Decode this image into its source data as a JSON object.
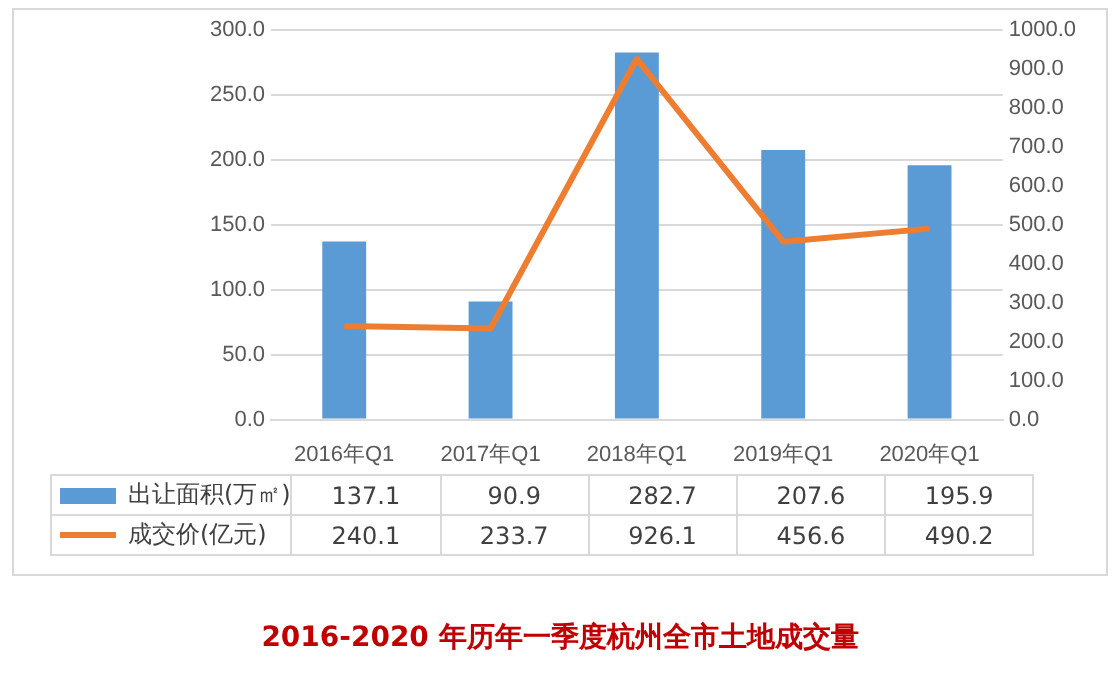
{
  "chart_data": {
    "type": "bar",
    "title": "2016-2020 年历年一季度杭州全市土地成交量",
    "categories": [
      "2016年Q1",
      "2017年Q1",
      "2018年Q1",
      "2019年Q1",
      "2020年Q1"
    ],
    "series": [
      {
        "name": "出让面积(万㎡)",
        "color": "#5b9bd5",
        "values": [
          137.1,
          90.9,
          282.7,
          207.6,
          195.9
        ]
      },
      {
        "name": "成交价(亿元)",
        "type": "line",
        "axis": "y2",
        "color": "#ed7d31",
        "values": [
          240.1,
          233.7,
          926.1,
          456.6,
          490.2
        ]
      }
    ],
    "ylim": [
      0,
      300
    ],
    "yticks": [
      {
        "value": 0,
        "label": "0.0"
      },
      {
        "value": 50,
        "label": "50.0"
      },
      {
        "value": 100,
        "label": "100.0"
      },
      {
        "value": 150,
        "label": "150.0"
      },
      {
        "value": 200,
        "label": "200.0"
      },
      {
        "value": 250,
        "label": "250.0"
      },
      {
        "value": 300,
        "label": "300.0"
      }
    ],
    "y2lim": [
      0,
      1000
    ],
    "y2ticks": [
      {
        "value": 0,
        "label": "0.0"
      },
      {
        "value": 100,
        "label": "100.0"
      },
      {
        "value": 200,
        "label": "200.0"
      },
      {
        "value": 300,
        "label": "300.0"
      },
      {
        "value": 400,
        "label": "400.0"
      },
      {
        "value": 500,
        "label": "500.0"
      },
      {
        "value": 600,
        "label": "600.0"
      },
      {
        "value": 700,
        "label": "700.0"
      },
      {
        "value": 800,
        "label": "800.0"
      },
      {
        "value": 900,
        "label": "900.0"
      },
      {
        "value": 1000,
        "label": "1000.0"
      }
    ],
    "grid": "y",
    "legend": "bottom",
    "data_labels": true,
    "marker": "none",
    "line_style": "solid"
  }
}
